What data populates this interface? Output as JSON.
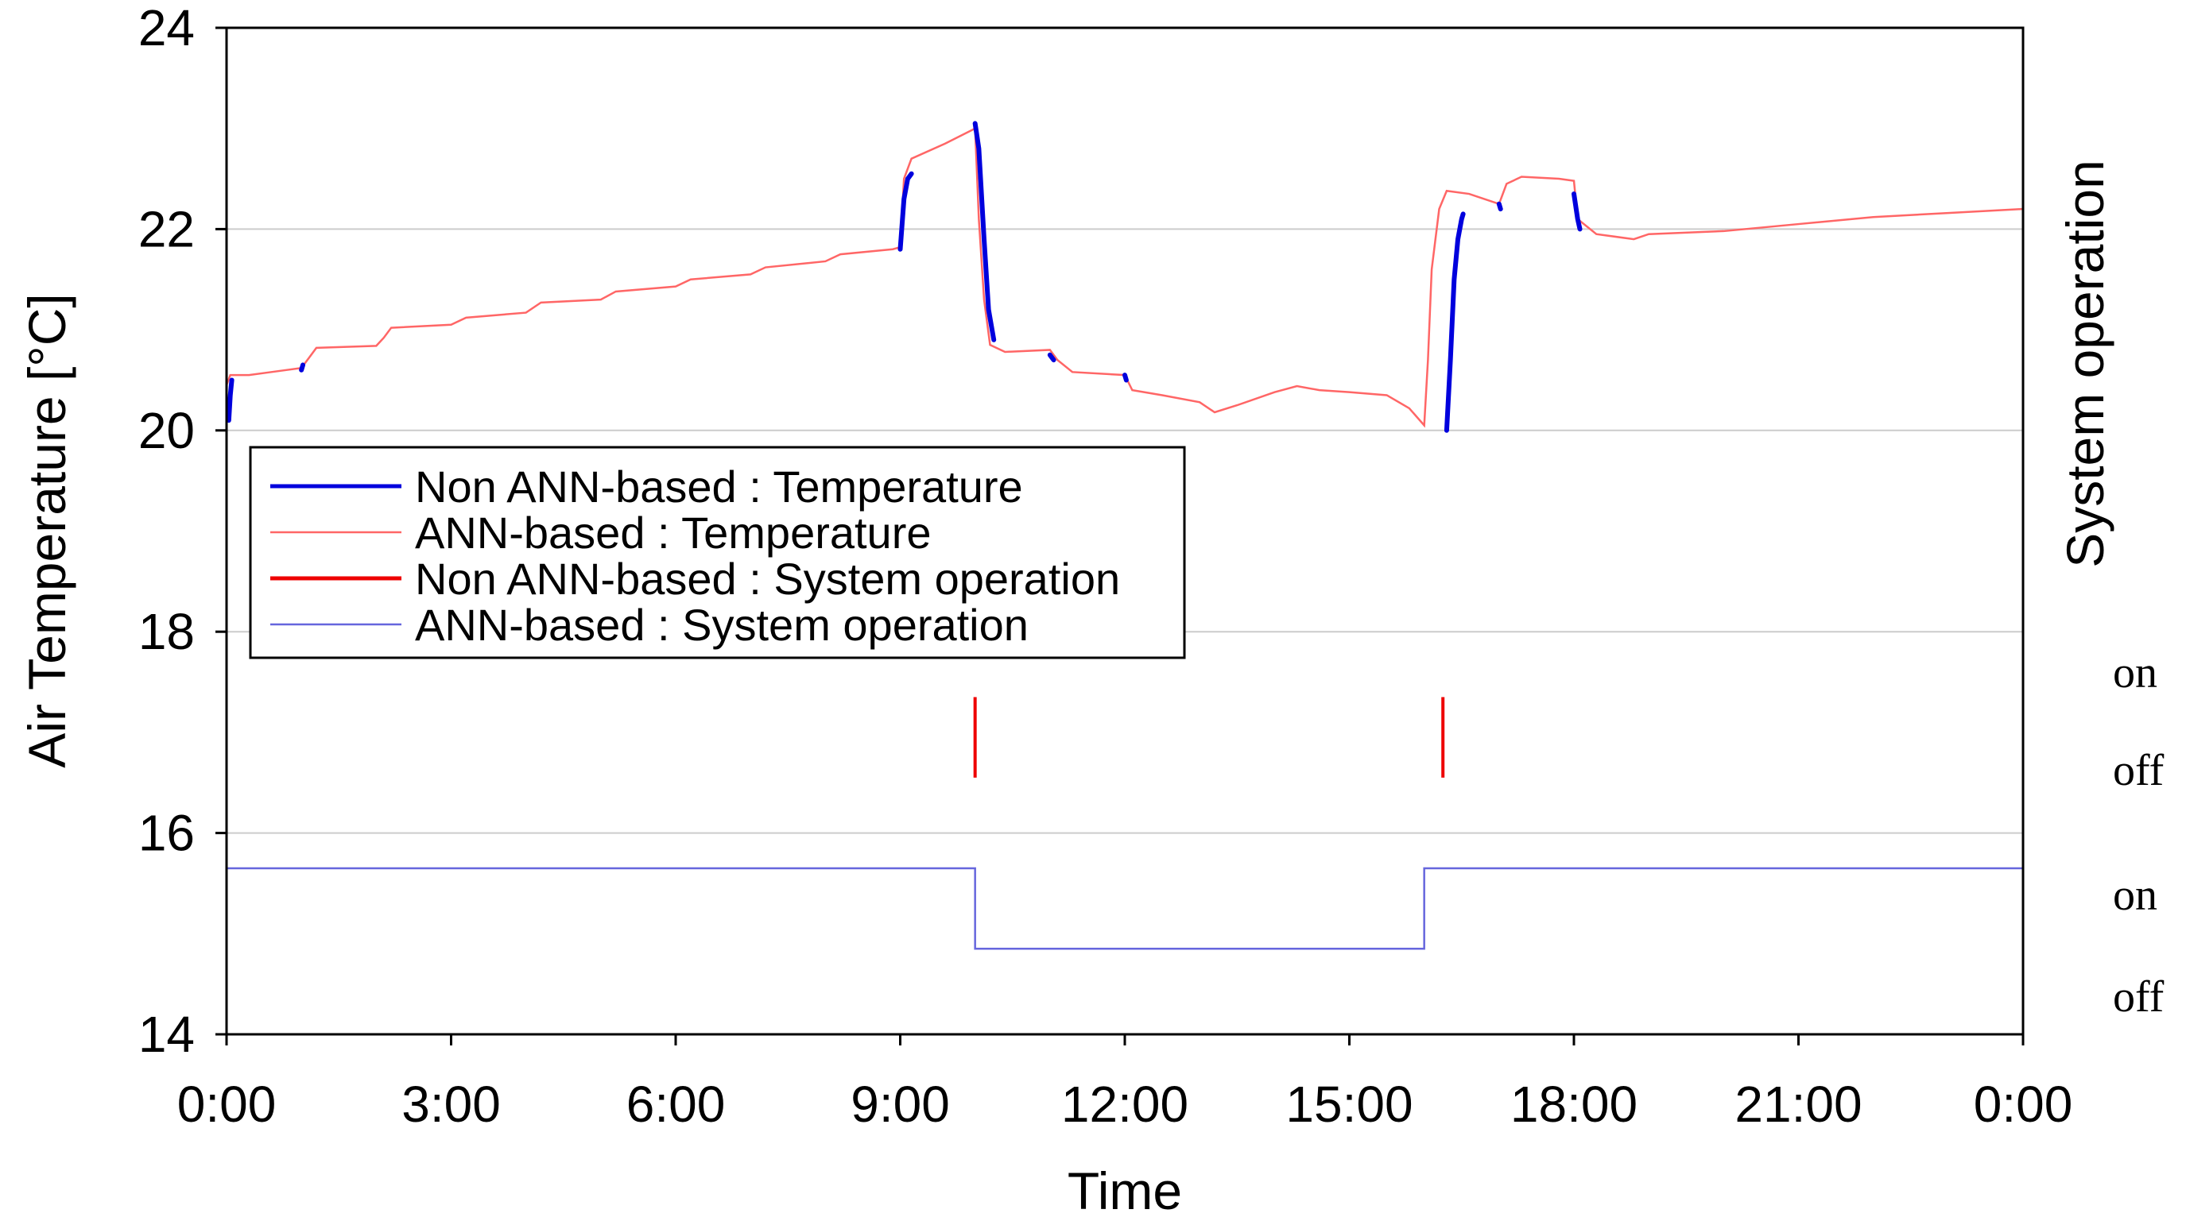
{
  "chart_data": {
    "type": "line",
    "xlabel": "Time",
    "ylabel": "Air Temperature [°C]",
    "y2label": "System operation",
    "x_ticks": [
      "0:00",
      "3:00",
      "6:00",
      "9:00",
      "12:00",
      "15:00",
      "18:00",
      "21:00",
      "0:00"
    ],
    "x_unit": "hours",
    "xlim": [
      0,
      24
    ],
    "y_ticks": [
      "14",
      "16",
      "18",
      "20",
      "22",
      "24"
    ],
    "ylim": [
      14,
      24
    ],
    "y2_state_labels": [
      "on",
      "off",
      "on",
      "off"
    ],
    "grid": "horizontal",
    "legend_position": "center-left",
    "series": [
      {
        "name": "Non ANN-based : Temperature",
        "color": "#0000dd",
        "segments": [
          [
            [
              0.03,
              20.1
            ],
            [
              0.05,
              20.35
            ],
            [
              0.07,
              20.5
            ]
          ],
          [
            [
              1.0,
              20.6
            ],
            [
              1.02,
              20.65
            ]
          ],
          [
            [
              9.0,
              21.8
            ],
            [
              9.05,
              22.3
            ],
            [
              9.1,
              22.5
            ],
            [
              9.15,
              22.55
            ]
          ],
          [
            [
              10.0,
              23.05
            ],
            [
              10.05,
              22.8
            ],
            [
              10.12,
              21.9
            ],
            [
              10.18,
              21.2
            ],
            [
              10.25,
              20.9
            ]
          ],
          [
            [
              11.0,
              20.75
            ],
            [
              11.05,
              20.7
            ]
          ],
          [
            [
              12.0,
              20.55
            ],
            [
              12.02,
              20.5
            ]
          ],
          [
            [
              16.3,
              20.0
            ],
            [
              16.35,
              20.7
            ],
            [
              16.4,
              21.5
            ],
            [
              16.45,
              21.9
            ],
            [
              16.5,
              22.1
            ],
            [
              16.52,
              22.15
            ]
          ],
          [
            [
              17.0,
              22.25
            ],
            [
              17.02,
              22.2
            ]
          ],
          [
            [
              18.0,
              22.35
            ],
            [
              18.05,
              22.1
            ],
            [
              18.08,
              22.0
            ]
          ]
        ]
      },
      {
        "name": "ANN-based : Temperature",
        "color": "#ff6666",
        "points": [
          [
            0.0,
            20.45
          ],
          [
            0.05,
            20.55
          ],
          [
            0.3,
            20.55
          ],
          [
            0.6,
            20.58
          ],
          [
            1.0,
            20.62
          ],
          [
            1.1,
            20.72
          ],
          [
            1.2,
            20.82
          ],
          [
            2.0,
            20.84
          ],
          [
            2.1,
            20.92
          ],
          [
            2.2,
            21.02
          ],
          [
            3.0,
            21.05
          ],
          [
            3.2,
            21.12
          ],
          [
            4.0,
            21.17
          ],
          [
            4.2,
            21.27
          ],
          [
            5.0,
            21.3
          ],
          [
            5.2,
            21.38
          ],
          [
            6.0,
            21.43
          ],
          [
            6.2,
            21.5
          ],
          [
            7.0,
            21.55
          ],
          [
            7.2,
            21.62
          ],
          [
            8.0,
            21.68
          ],
          [
            8.2,
            21.75
          ],
          [
            8.9,
            21.8
          ],
          [
            9.0,
            21.82
          ],
          [
            9.05,
            22.5
          ],
          [
            9.15,
            22.7
          ],
          [
            9.6,
            22.85
          ],
          [
            10.0,
            23.0
          ],
          [
            10.05,
            22.1
          ],
          [
            10.12,
            21.3
          ],
          [
            10.2,
            20.85
          ],
          [
            10.4,
            20.78
          ],
          [
            11.0,
            20.8
          ],
          [
            11.1,
            20.7
          ],
          [
            11.3,
            20.58
          ],
          [
            12.0,
            20.55
          ],
          [
            12.1,
            20.4
          ],
          [
            12.5,
            20.35
          ],
          [
            13.0,
            20.28
          ],
          [
            13.2,
            20.18
          ],
          [
            13.5,
            20.25
          ],
          [
            14.0,
            20.38
          ],
          [
            14.3,
            20.44
          ],
          [
            14.6,
            20.4
          ],
          [
            15.0,
            20.38
          ],
          [
            15.5,
            20.35
          ],
          [
            15.8,
            20.22
          ],
          [
            16.0,
            20.05
          ],
          [
            16.05,
            20.7
          ],
          [
            16.1,
            21.6
          ],
          [
            16.2,
            22.2
          ],
          [
            16.3,
            22.38
          ],
          [
            16.6,
            22.35
          ],
          [
            17.0,
            22.25
          ],
          [
            17.1,
            22.45
          ],
          [
            17.3,
            22.52
          ],
          [
            17.8,
            22.5
          ],
          [
            18.0,
            22.48
          ],
          [
            18.05,
            22.1
          ],
          [
            18.3,
            21.95
          ],
          [
            18.8,
            21.9
          ],
          [
            19.0,
            21.95
          ],
          [
            20.0,
            21.98
          ],
          [
            21.0,
            22.05
          ],
          [
            22.0,
            22.12
          ],
          [
            23.0,
            22.16
          ],
          [
            24.0,
            22.2
          ]
        ]
      },
      {
        "name": "Non ANN-based : System operation",
        "color": "#ee0000",
        "type": "switch-events",
        "events_hours": [
          10.0,
          16.25
        ],
        "y_range": [
          16.55,
          17.35
        ]
      },
      {
        "name": "ANN-based : System operation",
        "color": "#6666dd",
        "type": "step",
        "on_level": 15.65,
        "off_level": 14.85,
        "points": [
          [
            0,
            "on"
          ],
          [
            10.0,
            "off"
          ],
          [
            16.0,
            "on"
          ],
          [
            24,
            "on"
          ]
        ]
      }
    ]
  }
}
